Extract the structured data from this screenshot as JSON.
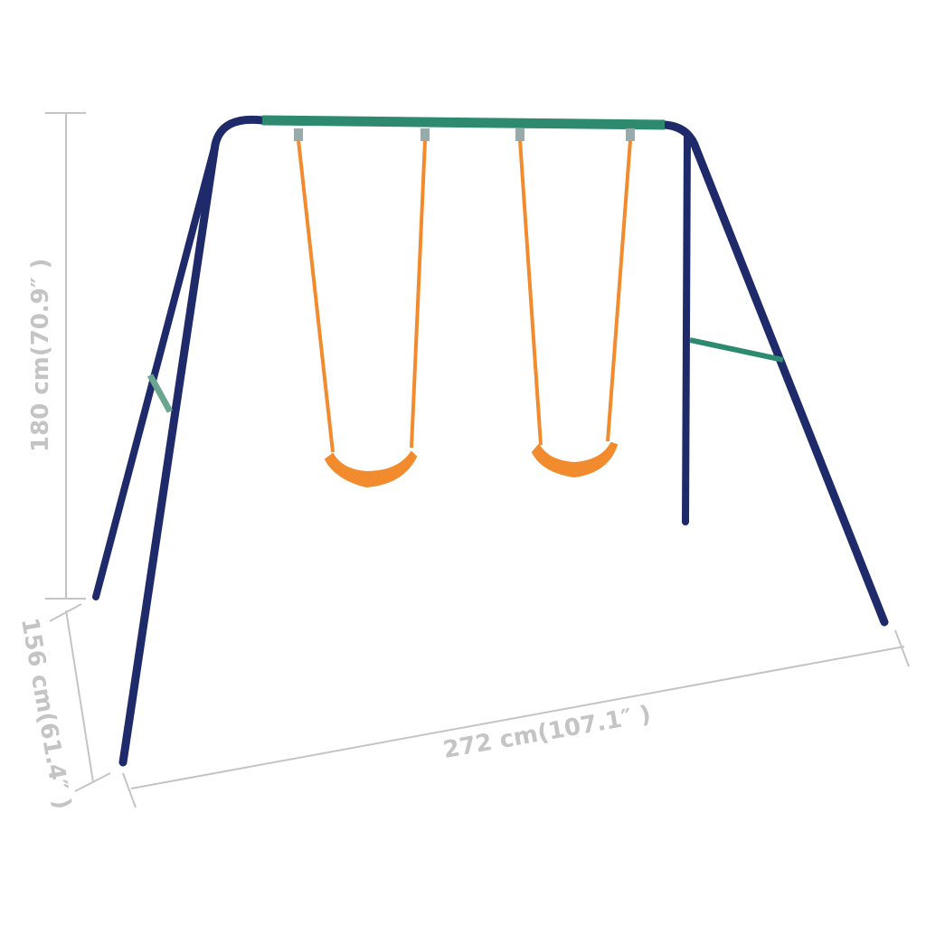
{
  "dimensions": {
    "height": "180 cm(70.9″ )",
    "depth": "156 cm(61.4″ )",
    "width": "272 cm(107.1″ )"
  },
  "colors": {
    "frame": "#1f2a6b",
    "top_bar": "#2e8a6e",
    "swing": "#f28a2e",
    "dimension_lines": "#c4c4c4"
  }
}
